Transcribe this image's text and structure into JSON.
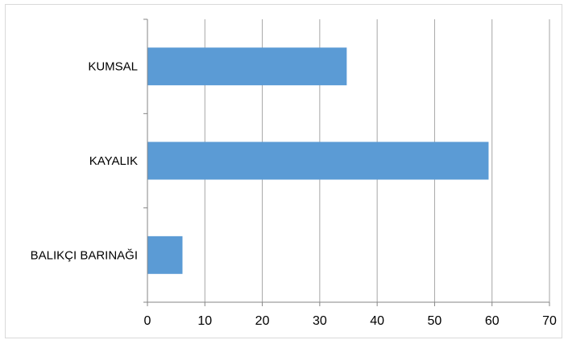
{
  "chart_data": {
    "type": "bar",
    "orientation": "horizontal",
    "categories": [
      "KUMSAL",
      "KAYALIK",
      "BALIKÇI BARINAĞI"
    ],
    "values": [
      34.7,
      59.4,
      6.1
    ],
    "xlim": [
      0,
      70
    ],
    "xticks": [
      "0",
      "10",
      "20",
      "30",
      "40",
      "50",
      "60",
      "70"
    ],
    "grid": "vertical",
    "legend": "none",
    "title": "",
    "xlabel": "",
    "ylabel": "",
    "colors": {
      "bar": "#5b9bd5",
      "grid": "#a6a6a6",
      "axis": "#868686"
    }
  }
}
